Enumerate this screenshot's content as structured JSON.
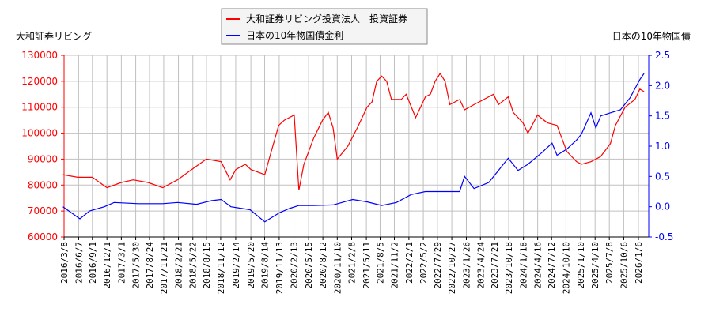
{
  "chart_data": {
    "type": "line",
    "legend": {
      "placement": "top-center",
      "entries": [
        "大和証券リビング投資法人　投資証券",
        "日本の10年物国債金利"
      ]
    },
    "left_axis": {
      "label": "大和証券リビング",
      "ylim": [
        60000,
        130000
      ],
      "ticks": [
        60000,
        70000,
        80000,
        90000,
        100000,
        110000,
        120000,
        130000
      ],
      "color": "#ff0000"
    },
    "right_axis": {
      "label": "日本の10年物国債",
      "ylim": [
        -0.5,
        2.5
      ],
      "ticks": [
        "-0.5",
        "0.0",
        "0.5",
        "1.0",
        "1.5",
        "2.0",
        "2.5"
      ],
      "color": "#0000ff"
    },
    "x_ticks": [
      "2016/3/8",
      "2016/6/7",
      "2016/9/1",
      "2016/12/1",
      "2017/3/1",
      "2017/5/30",
      "2017/8/24",
      "2017/11/21",
      "2018/2/21",
      "2018/5/22",
      "2018/8/15",
      "2018/11/12",
      "2019/2/14",
      "2019/5/20",
      "2019/8/14",
      "2019/11/13",
      "2020/2/13",
      "2020/5/15",
      "2020/8/12",
      "2020/11/10",
      "2021/2/8",
      "2021/5/11",
      "2021/8/5",
      "2021/11/2",
      "2022/2/1",
      "2022/5/2",
      "2022/7/29",
      "2022/10/27",
      "2023/1/26",
      "2023/4/24",
      "2023/7/21",
      "2023/10/18",
      "2024/1/18",
      "2024/4/16",
      "2024/7/12",
      "2024/10/10",
      "2025/1/10",
      "2025/4/10",
      "2025/7/8",
      "2025/10/6",
      "2026/1/6"
    ],
    "grid": true,
    "series": [
      {
        "name": "大和証券リビング投資法人　投資証券",
        "axis": "left",
        "color": "#ff0000",
        "points": [
          [
            "2016/3/1",
            84000
          ],
          [
            "2016/6/1",
            83000
          ],
          [
            "2016/9/1",
            83000
          ],
          [
            "2016/12/1",
            79000
          ],
          [
            "2017/3/1",
            81000
          ],
          [
            "2017/5/15",
            82000
          ],
          [
            "2017/8/15",
            81000
          ],
          [
            "2017/11/15",
            79000
          ],
          [
            "2018/2/15",
            82000
          ],
          [
            "2018/5/15",
            86000
          ],
          [
            "2018/8/15",
            90000
          ],
          [
            "2018/11/15",
            89000
          ],
          [
            "2019/1/10",
            82000
          ],
          [
            "2019/2/15",
            86000
          ],
          [
            "2019/4/15",
            88000
          ],
          [
            "2019/5/20",
            86000
          ],
          [
            "2019/8/15",
            84000
          ],
          [
            "2019/9/20",
            92000
          ],
          [
            "2019/11/10",
            103000
          ],
          [
            "2019/12/15",
            105000
          ],
          [
            "2020/2/15",
            107000
          ],
          [
            "2020/3/15",
            78000
          ],
          [
            "2020/4/15",
            88000
          ],
          [
            "2020/6/15",
            98000
          ],
          [
            "2020/8/10",
            105000
          ],
          [
            "2020/9/15",
            108000
          ],
          [
            "2020/10/15",
            102000
          ],
          [
            "2020/11/10",
            90000
          ],
          [
            "2021/1/15",
            95000
          ],
          [
            "2021/3/15",
            102000
          ],
          [
            "2021/5/15",
            110000
          ],
          [
            "2021/6/15",
            112000
          ],
          [
            "2021/7/15",
            120000
          ],
          [
            "2021/8/15",
            122000
          ],
          [
            "2021/9/15",
            120000
          ],
          [
            "2021/10/15",
            113000
          ],
          [
            "2021/12/15",
            113000
          ],
          [
            "2022/1/15",
            115000
          ],
          [
            "2022/3/15",
            106000
          ],
          [
            "2022/5/15",
            114000
          ],
          [
            "2022/6/15",
            115000
          ],
          [
            "2022/7/15",
            120000
          ],
          [
            "2022/8/15",
            123000
          ],
          [
            "2022/9/15",
            120000
          ],
          [
            "2022/10/15",
            111000
          ],
          [
            "2022/12/15",
            113000
          ],
          [
            "2023/1/15",
            109000
          ],
          [
            "2023/3/15",
            111000
          ],
          [
            "2023/5/15",
            113000
          ],
          [
            "2023/7/15",
            115000
          ],
          [
            "2023/8/15",
            111000
          ],
          [
            "2023/10/15",
            114000
          ],
          [
            "2023/11/15",
            108000
          ],
          [
            "2024/1/15",
            104000
          ],
          [
            "2024/2/15",
            100000
          ],
          [
            "2024/4/15",
            107000
          ],
          [
            "2024/6/15",
            104000
          ],
          [
            "2024/8/15",
            103000
          ],
          [
            "2024/10/15",
            93000
          ],
          [
            "2024/12/15",
            89000
          ],
          [
            "2025/1/15",
            88000
          ],
          [
            "2025/3/15",
            89000
          ],
          [
            "2025/5/15",
            91000
          ],
          [
            "2025/7/15",
            96000
          ],
          [
            "2025/8/15",
            103000
          ],
          [
            "2025/10/15",
            110000
          ],
          [
            "2025/12/15",
            113000
          ],
          [
            "2026/1/15",
            117000
          ],
          [
            "2026/2/10",
            116000
          ]
        ]
      },
      {
        "name": "日本の10年物国債金利",
        "axis": "right",
        "color": "#0000ff",
        "points": [
          [
            "2016/3/1",
            0.0
          ],
          [
            "2016/6/15",
            -0.2
          ],
          [
            "2016/8/15",
            -0.07
          ],
          [
            "2016/11/15",
            0.0
          ],
          [
            "2017/1/15",
            0.07
          ],
          [
            "2017/6/15",
            0.05
          ],
          [
            "2017/11/15",
            0.05
          ],
          [
            "2018/2/15",
            0.07
          ],
          [
            "2018/6/15",
            0.04
          ],
          [
            "2018/9/15",
            0.1
          ],
          [
            "2018/11/15",
            0.12
          ],
          [
            "2019/1/15",
            0.0
          ],
          [
            "2019/5/15",
            -0.05
          ],
          [
            "2019/8/15",
            -0.25
          ],
          [
            "2019/11/15",
            -0.1
          ],
          [
            "2020/1/15",
            -0.03
          ],
          [
            "2020/3/15",
            0.02
          ],
          [
            "2020/6/15",
            0.02
          ],
          [
            "2020/10/15",
            0.03
          ],
          [
            "2021/2/15",
            0.12
          ],
          [
            "2021/5/15",
            0.08
          ],
          [
            "2021/8/15",
            0.02
          ],
          [
            "2021/11/15",
            0.07
          ],
          [
            "2022/2/15",
            0.2
          ],
          [
            "2022/5/15",
            0.25
          ],
          [
            "2022/9/15",
            0.25
          ],
          [
            "2022/12/15",
            0.25
          ],
          [
            "2023/1/15",
            0.5
          ],
          [
            "2023/3/15",
            0.3
          ],
          [
            "2023/6/15",
            0.4
          ],
          [
            "2023/8/15",
            0.6
          ],
          [
            "2023/10/15",
            0.8
          ],
          [
            "2023/12/15",
            0.6
          ],
          [
            "2024/2/15",
            0.7
          ],
          [
            "2024/5/15",
            0.9
          ],
          [
            "2024/7/15",
            1.05
          ],
          [
            "2024/8/15",
            0.85
          ],
          [
            "2024/10/15",
            0.95
          ],
          [
            "2024/12/15",
            1.1
          ],
          [
            "2025/1/15",
            1.2
          ],
          [
            "2025/3/15",
            1.55
          ],
          [
            "2025/4/15",
            1.3
          ],
          [
            "2025/5/15",
            1.5
          ],
          [
            "2025/7/15",
            1.55
          ],
          [
            "2025/9/15",
            1.6
          ],
          [
            "2025/11/15",
            1.8
          ],
          [
            "2026/1/15",
            2.1
          ],
          [
            "2026/2/10",
            2.2
          ]
        ]
      }
    ]
  }
}
